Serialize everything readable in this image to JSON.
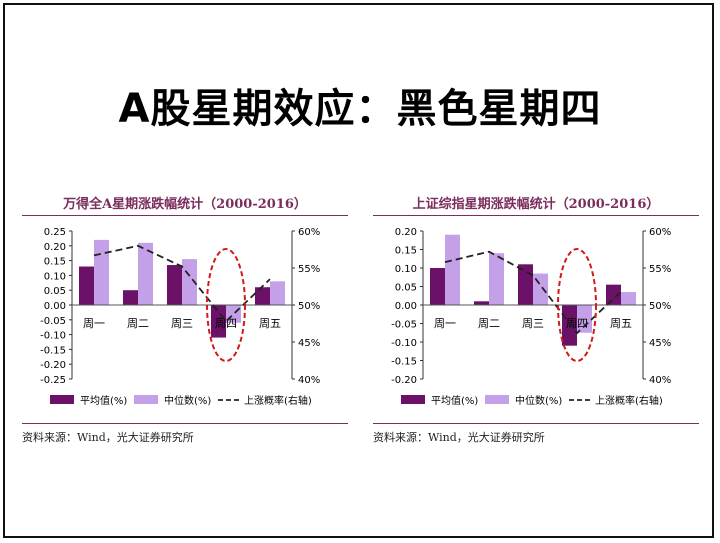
{
  "slide_title": "A股星期效应：黑色星期四",
  "colors": {
    "mean": "#6b1268",
    "median": "#c4a0e8",
    "prob": "#222222",
    "highlight": "#d11a1a",
    "frame": "#7b2d5c"
  },
  "chart_data": [
    {
      "type": "bar",
      "title": "万得全A星期涨跌幅统计（2000-2016）",
      "categories": [
        "周一",
        "周二",
        "周三",
        "周四",
        "周五"
      ],
      "series": [
        {
          "name": "平均值(%)",
          "values": [
            0.13,
            0.05,
            0.135,
            -0.11,
            0.06
          ]
        },
        {
          "name": "中位数(%)",
          "values": [
            0.22,
            0.21,
            0.155,
            -0.06,
            0.08
          ]
        },
        {
          "name": "上涨概率(右轴)",
          "axis": "right",
          "line": true,
          "values": [
            56.7,
            58.0,
            55.2,
            47.8,
            53.5
          ]
        }
      ],
      "ylim": [
        -0.25,
        0.25
      ],
      "yticks": [
        "0.25",
        "0.20",
        "0.15",
        "0.10",
        "0.05",
        "0.00",
        "-0.05",
        "-0.10",
        "-0.15",
        "-0.20",
        "-0.25"
      ],
      "y2lim": [
        40,
        60
      ],
      "y2ticks": [
        "60%",
        "55%",
        "50%",
        "45%",
        "40%"
      ],
      "highlight_category": "周四",
      "legend": "bottom",
      "source": "资料来源：Wind，光大证券研究所"
    },
    {
      "type": "bar",
      "title": "上证综指星期涨跌幅统计（2000-2016）",
      "categories": [
        "周一",
        "周二",
        "周三",
        "周四",
        "周五"
      ],
      "series": [
        {
          "name": "平均值(%)",
          "values": [
            0.1,
            0.01,
            0.11,
            -0.11,
            0.055
          ]
        },
        {
          "name": "中位数(%)",
          "values": [
            0.19,
            0.14,
            0.085,
            -0.075,
            0.035
          ]
        },
        {
          "name": "上涨概率(右轴)",
          "axis": "right",
          "line": true,
          "values": [
            55.8,
            57.2,
            54.0,
            46.2,
            51.8
          ]
        }
      ],
      "ylim": [
        -0.2,
        0.2
      ],
      "yticks": [
        "0.20",
        "0.15",
        "0.10",
        "0.05",
        "0.00",
        "-0.05",
        "-0.10",
        "-0.15",
        "-0.20"
      ],
      "y2lim": [
        40,
        60
      ],
      "y2ticks": [
        "60%",
        "55%",
        "50%",
        "45%",
        "40%"
      ],
      "highlight_category": "周四",
      "legend": "bottom",
      "source": "资料来源：Wind，光大证券研究所"
    }
  ]
}
